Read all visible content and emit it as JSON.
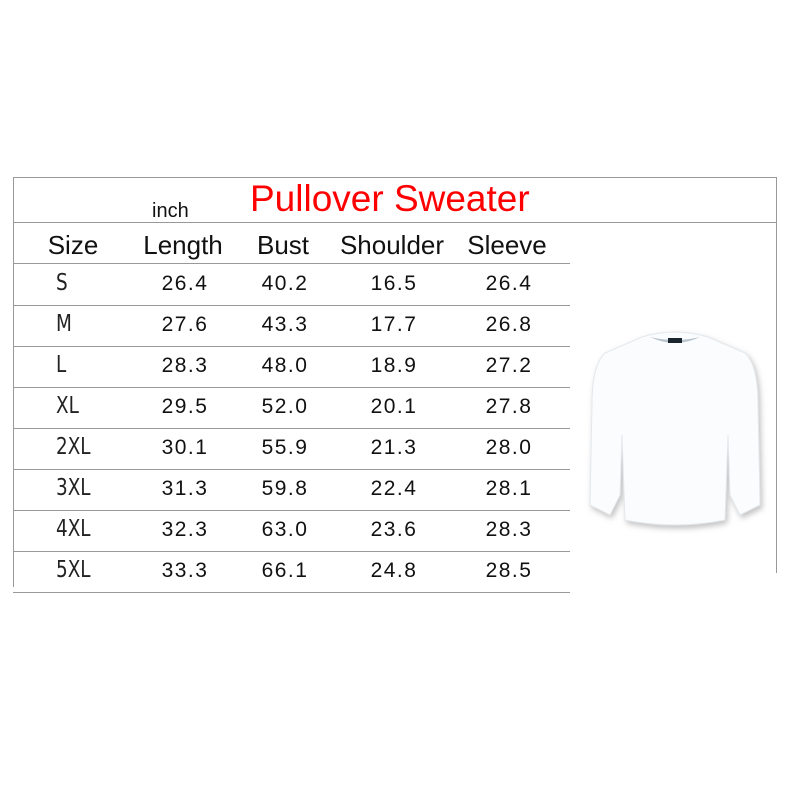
{
  "title": "Pullover Sweater",
  "unit": "inch",
  "columns": [
    "Size",
    "Length",
    "Bust",
    "Shoulder",
    "Sleeve"
  ],
  "rows": [
    [
      "S",
      "26.4",
      "40.2",
      "16.5",
      "26.4"
    ],
    [
      "M",
      "27.6",
      "43.3",
      "17.7",
      "26.8"
    ],
    [
      "L",
      "28.3",
      "48.0",
      "18.9",
      "27.2"
    ],
    [
      "XL",
      "29.5",
      "52.0",
      "20.1",
      "27.8"
    ],
    [
      "2XL",
      "30.1",
      "55.9",
      "21.3",
      "28.0"
    ],
    [
      "3XL",
      "31.3",
      "59.8",
      "22.4",
      "28.1"
    ],
    [
      "4XL",
      "32.3",
      "63.0",
      "23.6",
      "28.3"
    ],
    [
      "5XL",
      "33.3",
      "66.1",
      "24.8",
      "28.5"
    ]
  ],
  "colors": {
    "title": "#ff0000",
    "border": "#999999"
  },
  "image": "white-pullover-sweater"
}
